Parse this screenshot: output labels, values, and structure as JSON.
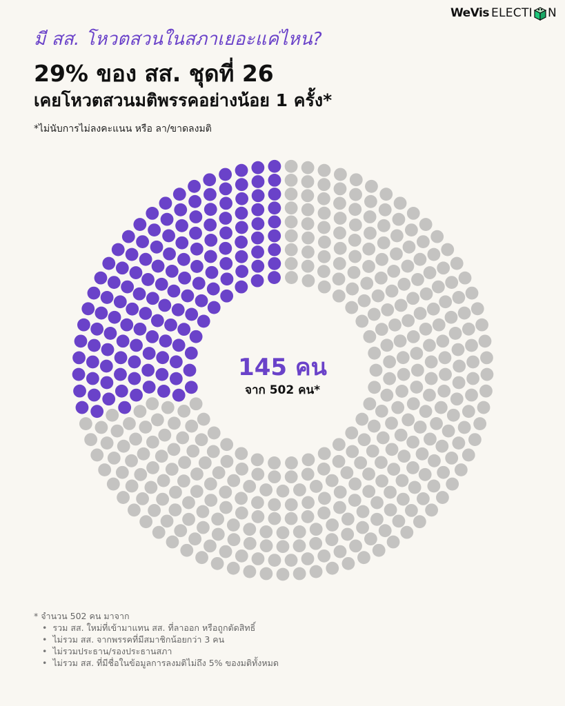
{
  "brand": {
    "part1": "WeVis",
    "part2": "ELECTI",
    "part3": "N"
  },
  "header": {
    "kicker": "มี สส. โหวตสวนในสภาเยอะแค่ไหน?",
    "headline": "29% ของ สส. ชุดที่ 26",
    "subhead": "เคยโหวตสวนมติพรรคอย่างน้อย 1 ครั้ง*",
    "note": "*ไม่นับการไม่ลงคะแนน หรือ ลา/ขาดลงมติ"
  },
  "center": {
    "count_label": "145 คน",
    "total_label": "จาก 502 คน*"
  },
  "footnote": {
    "title": "* จำนวน 502 คน มาจาก",
    "items": [
      "รวม สส. ใหม่ที่เข้ามาแทน สส. ที่ลาออก หรือถูกตัดสิทธิ์",
      "ไม่รวม สส. จากพรรคที่มีสมาชิกน้อยกว่า 3 คน",
      "ไม่รวมประธาน/รองประธานสภา",
      "ไม่รวม สส. ที่มีชื่อในข้อมูลการลงมติไม่ถึง 5% ของมติทั้งหมด"
    ]
  },
  "colors": {
    "highlight": "#6a42c9",
    "rest": "#c4c3c1",
    "background": "#f9f7f2"
  },
  "chart_data": {
    "type": "unit-donut",
    "total": 502,
    "highlighted": 145,
    "percent": 29,
    "series": [
      {
        "label": "145 คน",
        "value": 145,
        "color": "#6a42c9"
      },
      {
        "value": 357,
        "color": "#c4c3c1"
      }
    ]
  }
}
